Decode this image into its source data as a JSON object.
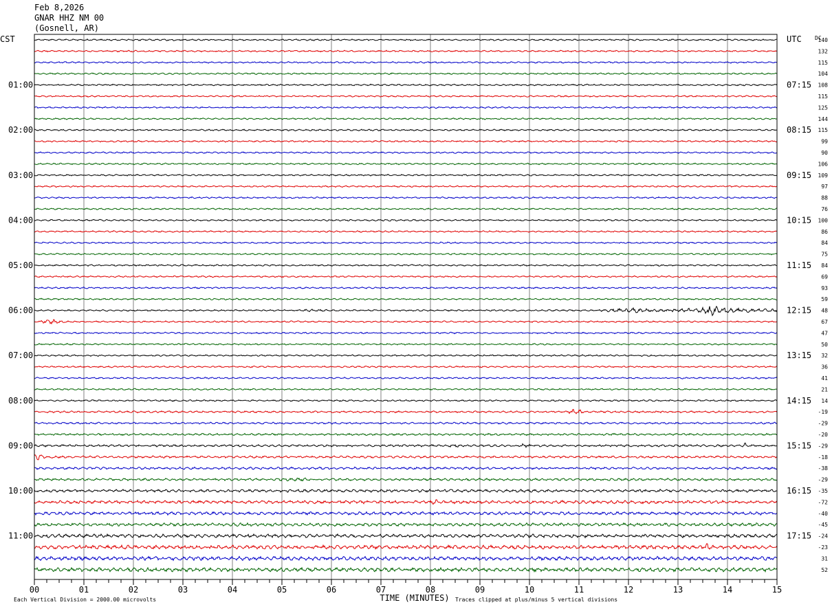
{
  "header": {
    "date": "Feb 8,2026",
    "station": "GNAR HHZ NM 00",
    "location": "(Gosnell, AR)"
  },
  "labels": {
    "left_tz": "CST",
    "right_tz": "UTC",
    "dc_header": "DC",
    "x_title": "TIME (MINUTES)",
    "scale_note": "Each Vertical Division = 2000.00 microvolts",
    "clip_note": "Traces clipped at plus/minus 5 vertical divisions"
  },
  "colors": {
    "trace_cycle": [
      "#000000",
      "#e00000",
      "#0000c8",
      "#006400"
    ],
    "grid": "#808080",
    "frame": "#000000"
  },
  "chart_data": {
    "type": "line",
    "subtype": "seismogram-helicorder",
    "x_range": [
      0,
      15
    ],
    "x_ticks": [
      "00",
      "01",
      "02",
      "03",
      "04",
      "05",
      "06",
      "07",
      "08",
      "09",
      "10",
      "11",
      "12",
      "13",
      "14",
      "15"
    ],
    "rows_count": 48,
    "row_minutes": 15,
    "left_hour_labels": [
      "01:00",
      "02:00",
      "03:00",
      "04:00",
      "05:00",
      "06:00",
      "07:00",
      "08:00",
      "09:00",
      "10:00",
      "11:00"
    ],
    "right_hour_labels": [
      "07:15",
      "08:15",
      "09:15",
      "10:15",
      "11:15",
      "12:15",
      "13:15",
      "14:15",
      "15:15",
      "16:15",
      "17:15"
    ],
    "hour_label_rows": [
      4,
      8,
      12,
      16,
      20,
      24,
      28,
      32,
      36,
      40,
      44
    ],
    "dc_offsets": [
      "140",
      "132",
      "115",
      "104",
      "108",
      "115",
      "125",
      "144",
      "115",
      "99",
      "90",
      "106",
      "109",
      "97",
      "88",
      "76",
      "100",
      "86",
      "84",
      "75",
      "84",
      "69",
      "93",
      "59",
      "48",
      "67",
      "47",
      "50",
      "32",
      "36",
      "41",
      "21",
      "14",
      "-19",
      "-29",
      "-20",
      "-29",
      "-18",
      "-38",
      "-29",
      "-35",
      "-72",
      "-40",
      "-45",
      "-24",
      "-23",
      "31",
      "52"
    ],
    "noise_level": [
      1,
      1,
      1,
      1,
      1,
      1,
      1,
      1,
      1,
      1,
      1,
      1,
      1,
      1,
      1,
      1,
      1,
      1,
      1,
      1,
      1,
      1,
      1,
      1,
      1,
      1,
      1,
      1,
      1,
      1,
      1,
      1,
      1,
      1.2,
      1.2,
      1.3,
      1.4,
      1.4,
      1.5,
      1.5,
      1.8,
      2,
      2,
      2,
      2.2,
      2.4,
      2.5,
      2.5
    ],
    "events": [
      {
        "row": 24,
        "start_min": 5.0,
        "end_min": 6.2,
        "amplitude": 1.6
      },
      {
        "row": 24,
        "start_min": 11.4,
        "end_min": 12.8,
        "amplitude": 3.0
      },
      {
        "row": 24,
        "start_min": 12.8,
        "end_min": 15.0,
        "amplitude": 3.8
      },
      {
        "row": 24,
        "start_min": 13.5,
        "end_min": 13.9,
        "amplitude": 7.5
      },
      {
        "row": 25,
        "start_min": 0.1,
        "end_min": 0.6,
        "amplitude": 3.0
      },
      {
        "row": 33,
        "start_min": 10.8,
        "end_min": 11.1,
        "amplitude": 4.0
      },
      {
        "row": 36,
        "start_min": 8.4,
        "end_min": 8.6,
        "amplitude": 3.5
      },
      {
        "row": 36,
        "start_min": 9.8,
        "end_min": 10.0,
        "amplitude": 3.5
      },
      {
        "row": 36,
        "start_min": 14.3,
        "end_min": 14.4,
        "amplitude": 5.0
      },
      {
        "row": 37,
        "start_min": 0.0,
        "end_min": 0.2,
        "amplitude": 5.0
      },
      {
        "row": 39,
        "start_min": 4.8,
        "end_min": 5.8,
        "amplitude": 2.5
      },
      {
        "row": 41,
        "start_min": 8.0,
        "end_min": 8.2,
        "amplitude": 3.5
      },
      {
        "row": 45,
        "start_min": 0.4,
        "end_min": 0.6,
        "amplitude": 3.5
      },
      {
        "row": 45,
        "start_min": 13.5,
        "end_min": 13.7,
        "amplitude": 5.0
      }
    ]
  }
}
